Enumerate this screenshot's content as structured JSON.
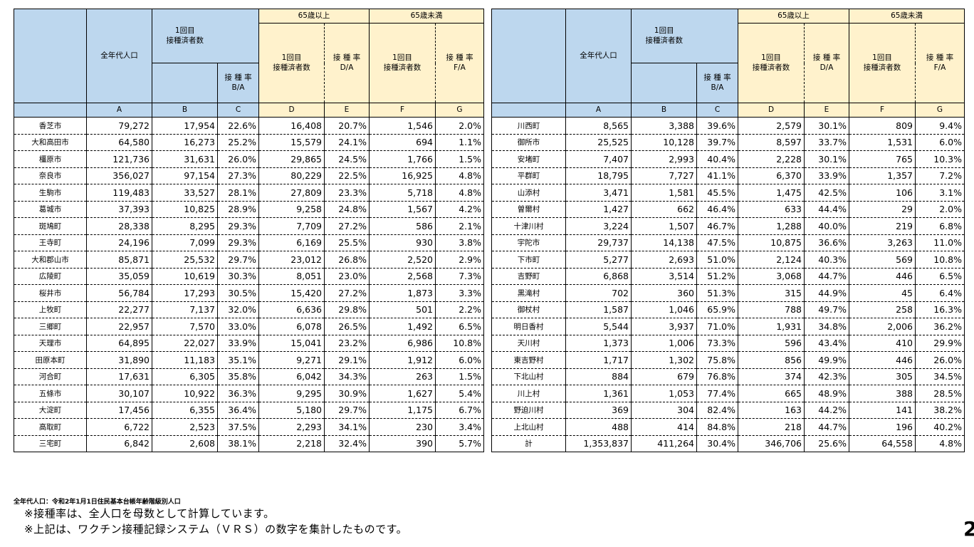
{
  "headers": {
    "pop": "全年代人口",
    "dose1_line1": "1回目",
    "dose1_line2": "接種済者数",
    "rate_label": "接 種 率",
    "over65": "65歳以上",
    "under65": "65歳未満",
    "sub_dose1_line1": "1回目",
    "sub_dose1_line2": "接種済者数",
    "formula_ba": "B/A",
    "formula_da": "D/A",
    "formula_fa": "F/A",
    "letters": [
      "A",
      "B",
      "C",
      "D",
      "E",
      "F",
      "G"
    ]
  },
  "left_rows": [
    {
      "name": "香芝市",
      "a": "79,272",
      "b": "17,954",
      "c": "22.6%",
      "d": "16,408",
      "e": "20.7%",
      "f": "1,546",
      "g": "2.0%"
    },
    {
      "name": "大和高田市",
      "a": "64,580",
      "b": "16,273",
      "c": "25.2%",
      "d": "15,579",
      "e": "24.1%",
      "f": "694",
      "g": "1.1%"
    },
    {
      "name": "橿原市",
      "a": "121,736",
      "b": "31,631",
      "c": "26.0%",
      "d": "29,865",
      "e": "24.5%",
      "f": "1,766",
      "g": "1.5%"
    },
    {
      "name": "奈良市",
      "a": "356,027",
      "b": "97,154",
      "c": "27.3%",
      "d": "80,229",
      "e": "22.5%",
      "f": "16,925",
      "g": "4.8%"
    },
    {
      "name": "生駒市",
      "a": "119,483",
      "b": "33,527",
      "c": "28.1%",
      "d": "27,809",
      "e": "23.3%",
      "f": "5,718",
      "g": "4.8%"
    },
    {
      "name": "葛城市",
      "a": "37,393",
      "b": "10,825",
      "c": "28.9%",
      "d": "9,258",
      "e": "24.8%",
      "f": "1,567",
      "g": "4.2%"
    },
    {
      "name": "斑鳩町",
      "a": "28,338",
      "b": "8,295",
      "c": "29.3%",
      "d": "7,709",
      "e": "27.2%",
      "f": "586",
      "g": "2.1%"
    },
    {
      "name": "王寺町",
      "a": "24,196",
      "b": "7,099",
      "c": "29.3%",
      "d": "6,169",
      "e": "25.5%",
      "f": "930",
      "g": "3.8%"
    },
    {
      "name": "大和郡山市",
      "a": "85,871",
      "b": "25,532",
      "c": "29.7%",
      "d": "23,012",
      "e": "26.8%",
      "f": "2,520",
      "g": "2.9%"
    },
    {
      "name": "広陵町",
      "a": "35,059",
      "b": "10,619",
      "c": "30.3%",
      "d": "8,051",
      "e": "23.0%",
      "f": "2,568",
      "g": "7.3%"
    },
    {
      "name": "桜井市",
      "a": "56,784",
      "b": "17,293",
      "c": "30.5%",
      "d": "15,420",
      "e": "27.2%",
      "f": "1,873",
      "g": "3.3%"
    },
    {
      "name": "上牧町",
      "a": "22,277",
      "b": "7,137",
      "c": "32.0%",
      "d": "6,636",
      "e": "29.8%",
      "f": "501",
      "g": "2.2%"
    },
    {
      "name": "三郷町",
      "a": "22,957",
      "b": "7,570",
      "c": "33.0%",
      "d": "6,078",
      "e": "26.5%",
      "f": "1,492",
      "g": "6.5%"
    },
    {
      "name": "天理市",
      "a": "64,895",
      "b": "22,027",
      "c": "33.9%",
      "d": "15,041",
      "e": "23.2%",
      "f": "6,986",
      "g": "10.8%"
    },
    {
      "name": "田原本町",
      "a": "31,890",
      "b": "11,183",
      "c": "35.1%",
      "d": "9,271",
      "e": "29.1%",
      "f": "1,912",
      "g": "6.0%"
    },
    {
      "name": "河合町",
      "a": "17,631",
      "b": "6,305",
      "c": "35.8%",
      "d": "6,042",
      "e": "34.3%",
      "f": "263",
      "g": "1.5%"
    },
    {
      "name": "五條市",
      "a": "30,107",
      "b": "10,922",
      "c": "36.3%",
      "d": "9,295",
      "e": "30.9%",
      "f": "1,627",
      "g": "5.4%"
    },
    {
      "name": "大淀町",
      "a": "17,456",
      "b": "6,355",
      "c": "36.4%",
      "d": "5,180",
      "e": "29.7%",
      "f": "1,175",
      "g": "6.7%"
    },
    {
      "name": "高取町",
      "a": "6,722",
      "b": "2,523",
      "c": "37.5%",
      "d": "2,293",
      "e": "34.1%",
      "f": "230",
      "g": "3.4%"
    },
    {
      "name": "三宅町",
      "a": "6,842",
      "b": "2,608",
      "c": "38.1%",
      "d": "2,218",
      "e": "32.4%",
      "f": "390",
      "g": "5.7%"
    }
  ],
  "right_rows": [
    {
      "name": "川西町",
      "a": "8,565",
      "b": "3,388",
      "c": "39.6%",
      "d": "2,579",
      "e": "30.1%",
      "f": "809",
      "g": "9.4%"
    },
    {
      "name": "御所市",
      "a": "25,525",
      "b": "10,128",
      "c": "39.7%",
      "d": "8,597",
      "e": "33.7%",
      "f": "1,531",
      "g": "6.0%"
    },
    {
      "name": "安堵町",
      "a": "7,407",
      "b": "2,993",
      "c": "40.4%",
      "d": "2,228",
      "e": "30.1%",
      "f": "765",
      "g": "10.3%"
    },
    {
      "name": "平群町",
      "a": "18,795",
      "b": "7,727",
      "c": "41.1%",
      "d": "6,370",
      "e": "33.9%",
      "f": "1,357",
      "g": "7.2%"
    },
    {
      "name": "山添村",
      "a": "3,471",
      "b": "1,581",
      "c": "45.5%",
      "d": "1,475",
      "e": "42.5%",
      "f": "106",
      "g": "3.1%"
    },
    {
      "name": "曽爾村",
      "a": "1,427",
      "b": "662",
      "c": "46.4%",
      "d": "633",
      "e": "44.4%",
      "f": "29",
      "g": "2.0%"
    },
    {
      "name": "十津川村",
      "a": "3,224",
      "b": "1,507",
      "c": "46.7%",
      "d": "1,288",
      "e": "40.0%",
      "f": "219",
      "g": "6.8%"
    },
    {
      "name": "宇陀市",
      "a": "29,737",
      "b": "14,138",
      "c": "47.5%",
      "d": "10,875",
      "e": "36.6%",
      "f": "3,263",
      "g": "11.0%"
    },
    {
      "name": "下市町",
      "a": "5,277",
      "b": "2,693",
      "c": "51.0%",
      "d": "2,124",
      "e": "40.3%",
      "f": "569",
      "g": "10.8%"
    },
    {
      "name": "吉野町",
      "a": "6,868",
      "b": "3,514",
      "c": "51.2%",
      "d": "3,068",
      "e": "44.7%",
      "f": "446",
      "g": "6.5%"
    },
    {
      "name": "黒滝村",
      "a": "702",
      "b": "360",
      "c": "51.3%",
      "d": "315",
      "e": "44.9%",
      "f": "45",
      "g": "6.4%"
    },
    {
      "name": "御杖村",
      "a": "1,587",
      "b": "1,046",
      "c": "65.9%",
      "d": "788",
      "e": "49.7%",
      "f": "258",
      "g": "16.3%"
    },
    {
      "name": "明日香村",
      "a": "5,544",
      "b": "3,937",
      "c": "71.0%",
      "d": "1,931",
      "e": "34.8%",
      "f": "2,006",
      "g": "36.2%"
    },
    {
      "name": "天川村",
      "a": "1,373",
      "b": "1,006",
      "c": "73.3%",
      "d": "596",
      "e": "43.4%",
      "f": "410",
      "g": "29.9%"
    },
    {
      "name": "東吉野村",
      "a": "1,717",
      "b": "1,302",
      "c": "75.8%",
      "d": "856",
      "e": "49.9%",
      "f": "446",
      "g": "26.0%"
    },
    {
      "name": "下北山村",
      "a": "884",
      "b": "679",
      "c": "76.8%",
      "d": "374",
      "e": "42.3%",
      "f": "305",
      "g": "34.5%"
    },
    {
      "name": "川上村",
      "a": "1,361",
      "b": "1,053",
      "c": "77.4%",
      "d": "665",
      "e": "48.9%",
      "f": "388",
      "g": "28.5%"
    },
    {
      "name": "野迫川村",
      "a": "369",
      "b": "304",
      "c": "82.4%",
      "d": "163",
      "e": "44.2%",
      "f": "141",
      "g": "38.2%"
    },
    {
      "name": "上北山村",
      "a": "488",
      "b": "414",
      "c": "84.8%",
      "d": "218",
      "e": "44.7%",
      "f": "196",
      "g": "40.2%"
    },
    {
      "name": "計",
      "a": "1,353,837",
      "b": "411,264",
      "c": "30.4%",
      "d": "346,706",
      "e": "25.6%",
      "f": "64,558",
      "g": "4.8%"
    }
  ],
  "footnote_source": "全年代人口：令和2年1月1日住民基本台帳年齢階級別人口",
  "notes": [
    "※接種率は、全人口を母数として計算しています。",
    "※上記は、ワクチン接種記録システム（ＶＲＳ）の数字を集計したものです。"
  ],
  "page_number": "2",
  "colors": {
    "header_blue": "#bdd7ee",
    "header_cream": "#fff2cc"
  }
}
